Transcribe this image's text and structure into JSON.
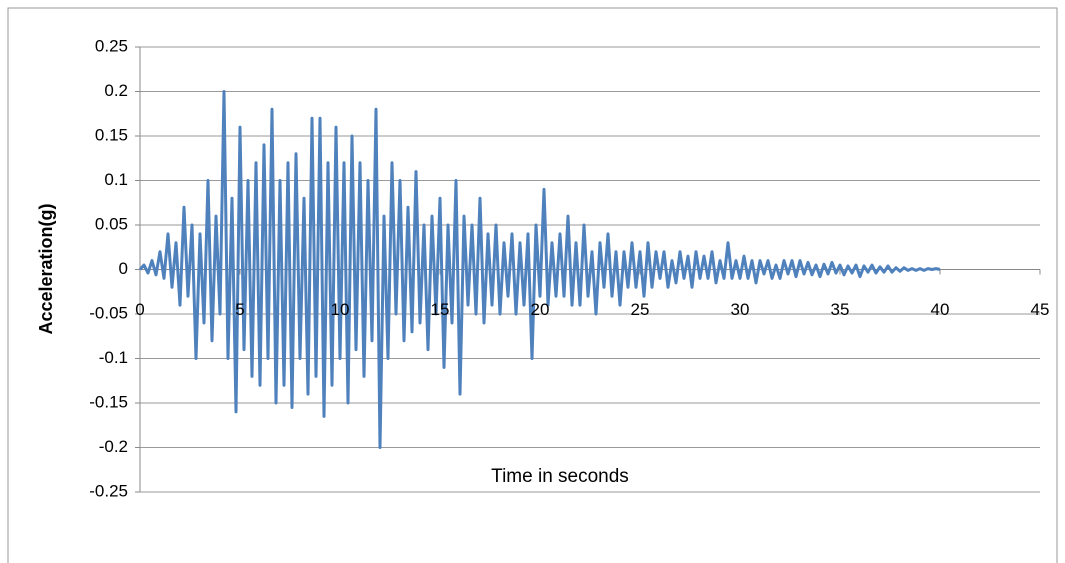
{
  "chart_data": {
    "type": "line",
    "xlabel": "Time in seconds",
    "ylabel": "Acceleration(g)",
    "color": "#4f81bd",
    "xlim": [
      0,
      45
    ],
    "xticks": [
      0,
      5,
      10,
      15,
      20,
      25,
      30,
      35,
      40,
      45
    ],
    "ylim": [
      -0.25,
      0.25
    ],
    "yticks": [
      0.25,
      0.2,
      0.15,
      0.1,
      0.05,
      0,
      -0.05,
      -0.1,
      -0.15,
      -0.2,
      -0.25
    ],
    "grid": true,
    "x": [
      0,
      0.2,
      0.4,
      0.6,
      0.8,
      1,
      1.2,
      1.4,
      1.6,
      1.8,
      2,
      2.2,
      2.4,
      2.6,
      2.8,
      3,
      3.2,
      3.4,
      3.6,
      3.8,
      4,
      4.2,
      4.4,
      4.6,
      4.8,
      5,
      5.2,
      5.4,
      5.6,
      5.8,
      6,
      6.2,
      6.4,
      6.6,
      6.8,
      7,
      7.2,
      7.4,
      7.6,
      7.8,
      8,
      8.2,
      8.4,
      8.6,
      8.8,
      9,
      9.2,
      9.4,
      9.6,
      9.8,
      10,
      10.2,
      10.4,
      10.6,
      10.8,
      11,
      11.2,
      11.4,
      11.6,
      11.8,
      12,
      12.2,
      12.4,
      12.6,
      12.8,
      13,
      13.2,
      13.4,
      13.6,
      13.8,
      14,
      14.2,
      14.4,
      14.6,
      14.8,
      15,
      15.2,
      15.4,
      15.6,
      15.8,
      16,
      16.2,
      16.4,
      16.6,
      16.8,
      17,
      17.2,
      17.4,
      17.6,
      17.8,
      18,
      18.2,
      18.4,
      18.6,
      18.8,
      19,
      19.2,
      19.4,
      19.6,
      19.8,
      20,
      20.2,
      20.4,
      20.6,
      20.8,
      21,
      21.2,
      21.4,
      21.6,
      21.8,
      22,
      22.2,
      22.4,
      22.6,
      22.8,
      23,
      23.2,
      23.4,
      23.6,
      23.8,
      24,
      24.2,
      24.4,
      24.6,
      24.8,
      25,
      25.2,
      25.4,
      25.6,
      25.8,
      26,
      26.2,
      26.4,
      26.6,
      26.8,
      27,
      27.2,
      27.4,
      27.6,
      27.8,
      28,
      28.2,
      28.4,
      28.6,
      28.8,
      29,
      29.2,
      29.4,
      29.6,
      29.8,
      30,
      30.2,
      30.4,
      30.6,
      30.8,
      31,
      31.2,
      31.4,
      31.6,
      31.8,
      32,
      32.2,
      32.4,
      32.6,
      32.8,
      33,
      33.2,
      33.4,
      33.6,
      33.8,
      34,
      34.2,
      34.4,
      34.6,
      34.8,
      35,
      35.2,
      35.4,
      35.6,
      35.8,
      36,
      36.2,
      36.4,
      36.6,
      36.8,
      37,
      37.2,
      37.4,
      37.6,
      37.8,
      38,
      38.2,
      38.4,
      38.6,
      38.8,
      39,
      39.2,
      39.4,
      39.6,
      39.8,
      40
    ],
    "values": [
      0,
      0.005,
      -0.004,
      0.01,
      -0.006,
      0.02,
      -0.01,
      0.04,
      -0.02,
      0.03,
      -0.04,
      0.07,
      -0.03,
      0.05,
      -0.1,
      0.04,
      -0.06,
      0.1,
      -0.08,
      0.06,
      -0.05,
      0.2,
      -0.1,
      0.08,
      -0.16,
      0.16,
      -0.09,
      0.1,
      -0.12,
      0.12,
      -0.13,
      0.14,
      -0.1,
      0.18,
      -0.15,
      0.1,
      -0.13,
      0.12,
      -0.155,
      0.13,
      -0.1,
      0.08,
      -0.14,
      0.17,
      -0.12,
      0.17,
      -0.165,
      0.12,
      -0.13,
      0.16,
      -0.1,
      0.12,
      -0.15,
      0.15,
      -0.09,
      0.12,
      -0.12,
      0.1,
      -0.08,
      0.18,
      -0.2,
      0.06,
      -0.1,
      0.12,
      -0.05,
      0.1,
      -0.08,
      0.07,
      -0.07,
      0.11,
      -0.06,
      0.05,
      -0.09,
      0.06,
      -0.05,
      0.08,
      -0.11,
      0.05,
      -0.06,
      0.1,
      -0.14,
      0.06,
      -0.04,
      0.05,
      -0.05,
      0.08,
      -0.06,
      0.04,
      -0.04,
      0.05,
      -0.05,
      0.03,
      -0.03,
      0.04,
      -0.05,
      0.03,
      -0.04,
      0.04,
      -0.1,
      0.05,
      -0.03,
      0.09,
      -0.04,
      0.03,
      -0.03,
      0.04,
      -0.03,
      0.06,
      -0.04,
      0.03,
      -0.04,
      0.05,
      -0.03,
      0.02,
      -0.05,
      0.03,
      -0.02,
      0.04,
      -0.03,
      0.02,
      -0.04,
      0.02,
      -0.02,
      0.03,
      -0.02,
      0.02,
      -0.03,
      0.03,
      -0.02,
      0.02,
      -0.01,
      0.02,
      -0.02,
      0.01,
      -0.015,
      0.02,
      -0.01,
      0.015,
      -0.02,
      0.02,
      -0.01,
      0.015,
      -0.01,
      0.02,
      -0.015,
      0.01,
      -0.01,
      0.03,
      -0.01,
      0.01,
      -0.01,
      0.015,
      -0.01,
      0.01,
      -0.015,
      0.01,
      -0.005,
      0.01,
      -0.01,
      0.005,
      -0.01,
      0.01,
      -0.005,
      0.01,
      -0.008,
      0.01,
      -0.005,
      0.008,
      -0.006,
      0.005,
      -0.008,
      0.006,
      -0.005,
      0.008,
      -0.004,
      0.005,
      -0.006,
      0.004,
      -0.004,
      0.005,
      -0.008,
      0.004,
      -0.003,
      0.005,
      -0.004,
      0.003,
      -0.003,
      0.004,
      -0.003,
      0.002,
      -0.002,
      0.002,
      -0.001,
      0.001,
      -0.001,
      0.001,
      -0.001,
      0.001,
      0,
      0.001,
      0
    ]
  }
}
